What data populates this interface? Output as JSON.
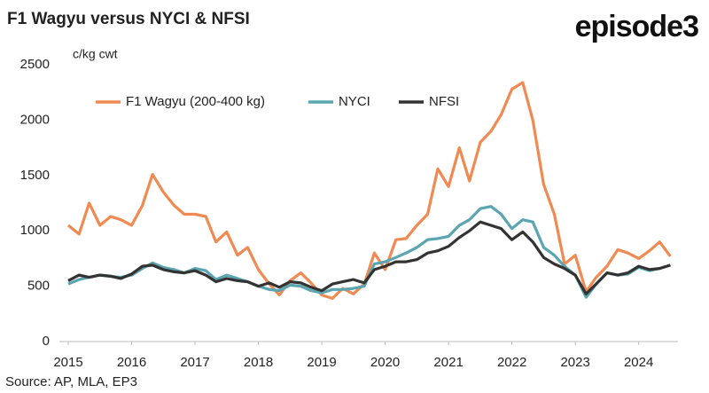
{
  "chart_data": {
    "type": "line",
    "title": "F1 Wagyu versus NYCI & NFSI",
    "brand": "episode3",
    "y_label": "c/kg cwt",
    "source": "Source: AP, MLA, EP3",
    "x": [
      2015,
      2015.17,
      2015.33,
      2015.5,
      2015.67,
      2015.83,
      2016,
      2016.17,
      2016.33,
      2016.5,
      2016.67,
      2016.83,
      2017,
      2017.17,
      2017.33,
      2017.5,
      2017.67,
      2017.83,
      2018,
      2018.17,
      2018.33,
      2018.5,
      2018.67,
      2018.83,
      2019,
      2019.17,
      2019.33,
      2019.5,
      2019.67,
      2019.83,
      2020,
      2020.17,
      2020.33,
      2020.5,
      2020.67,
      2020.83,
      2021,
      2021.17,
      2021.33,
      2021.5,
      2021.67,
      2021.83,
      2022,
      2022.17,
      2022.33,
      2022.5,
      2022.67,
      2022.83,
      2023,
      2023.17,
      2023.33,
      2023.5,
      2023.67,
      2023.83,
      2024,
      2024.17,
      2024.33,
      2024.5
    ],
    "series": [
      {
        "name": "F1 Wagyu (200-400 kg)",
        "color": "#f08a52",
        "values": [
          1050,
          970,
          1250,
          1050,
          1130,
          1100,
          1050,
          1230,
          1510,
          1350,
          1230,
          1150,
          1150,
          1130,
          900,
          990,
          780,
          850,
          650,
          520,
          420,
          550,
          620,
          530,
          420,
          390,
          480,
          430,
          520,
          800,
          650,
          920,
          930,
          1050,
          1150,
          1560,
          1400,
          1750,
          1450,
          1800,
          1900,
          2050,
          2280,
          2340,
          2000,
          1420,
          1150,
          700,
          780,
          450,
          580,
          680,
          830,
          800,
          750,
          820,
          900,
          770
        ]
      },
      {
        "name": "NYCI",
        "color": "#5aa5b0",
        "values": [
          520,
          560,
          580,
          600,
          590,
          580,
          600,
          660,
          710,
          670,
          650,
          620,
          660,
          640,
          560,
          600,
          570,
          540,
          500,
          470,
          460,
          510,
          500,
          460,
          440,
          470,
          470,
          480,
          500,
          700,
          720,
          760,
          800,
          850,
          920,
          930,
          950,
          1050,
          1100,
          1200,
          1220,
          1150,
          1020,
          1100,
          1080,
          850,
          780,
          680,
          600,
          400,
          520,
          620,
          600,
          610,
          670,
          640,
          660,
          690
        ]
      },
      {
        "name": "NFSI",
        "color": "#333333",
        "values": [
          550,
          600,
          580,
          600,
          590,
          570,
          610,
          680,
          690,
          650,
          630,
          620,
          640,
          600,
          540,
          570,
          550,
          540,
          500,
          530,
          490,
          540,
          530,
          490,
          460,
          520,
          540,
          560,
          530,
          650,
          680,
          720,
          720,
          740,
          800,
          820,
          860,
          940,
          1000,
          1080,
          1050,
          1020,
          920,
          990,
          900,
          760,
          700,
          660,
          600,
          430,
          520,
          620,
          600,
          620,
          680,
          650,
          660,
          690
        ]
      }
    ],
    "xlim": [
      2015,
      2024.55
    ],
    "xticks": [
      2015,
      2016,
      2017,
      2018,
      2019,
      2020,
      2021,
      2022,
      2023,
      2024
    ],
    "ylim": [
      0,
      2500
    ],
    "yticks": [
      0,
      500,
      1000,
      1500,
      2000,
      2500
    ],
    "grid": false
  }
}
